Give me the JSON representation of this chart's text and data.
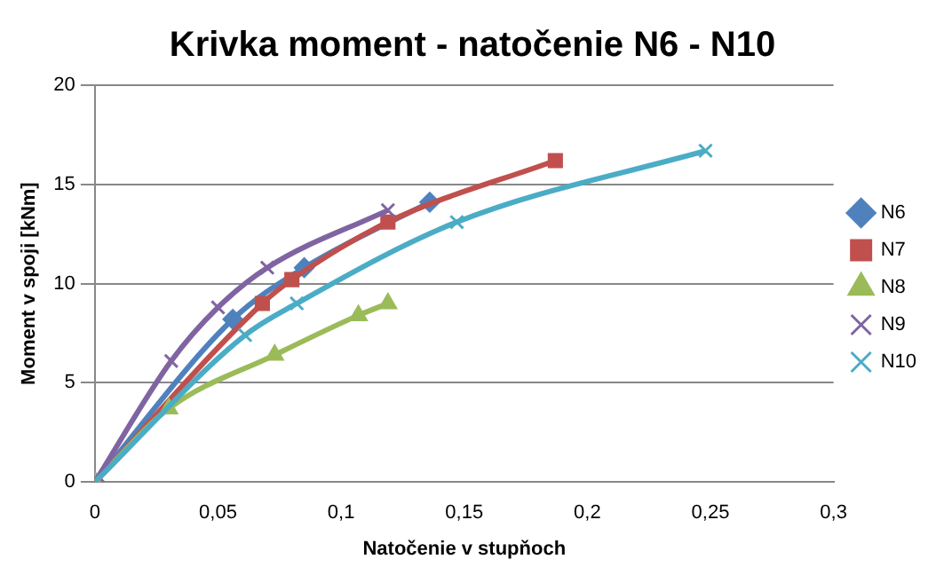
{
  "chart_data": {
    "type": "line",
    "title": "Krivka moment - natočenie N6 - N10",
    "xlabel": "Natočenie v stupňoch",
    "ylabel": "Moment v spoji [kNm]",
    "xlim": [
      0,
      0.3
    ],
    "xticks": [
      0,
      {
        "value": 0.05,
        "label": "0,05"
      },
      {
        "value": 0.1,
        "label": "0,1"
      },
      {
        "value": 0.15,
        "label": "0,15"
      },
      {
        "value": 0.2,
        "label": "0,2"
      },
      {
        "value": 0.25,
        "label": "0,25"
      },
      {
        "value": 0.3,
        "label": "0,3"
      }
    ],
    "ylim": [
      0,
      20
    ],
    "yticks": [
      0,
      5,
      10,
      15,
      20
    ],
    "grid": "y",
    "legend": "right",
    "series": [
      {
        "name": "N6",
        "color": "#4f81bd",
        "marker": "diamond",
        "x": [
          0,
          0.056,
          0.085,
          0.136
        ],
        "values": [
          0,
          8.2,
          10.8,
          14.1
        ]
      },
      {
        "name": "N7",
        "color": "#c0504d",
        "marker": "square",
        "x": [
          0,
          0.068,
          0.08,
          0.119,
          0.187
        ],
        "values": [
          0,
          9.0,
          10.2,
          13.1,
          16.2
        ]
      },
      {
        "name": "N8",
        "color": "#9bbb59",
        "marker": "triangle",
        "x": [
          0,
          0.03,
          0.073,
          0.107,
          0.119
        ],
        "values": [
          0,
          3.7,
          6.4,
          8.4,
          9.0
        ]
      },
      {
        "name": "N9",
        "color": "#8064a2",
        "marker": "cross",
        "x": [
          0,
          0.031,
          0.05,
          0.07,
          0.119
        ],
        "values": [
          0,
          6.1,
          8.8,
          10.8,
          13.7
        ]
      },
      {
        "name": "N10",
        "color": "#4bacc6",
        "marker": "cross",
        "x": [
          0,
          0.061,
          0.082,
          0.147,
          0.248
        ],
        "values": [
          0,
          7.4,
          9.0,
          13.1,
          16.7
        ]
      }
    ]
  }
}
